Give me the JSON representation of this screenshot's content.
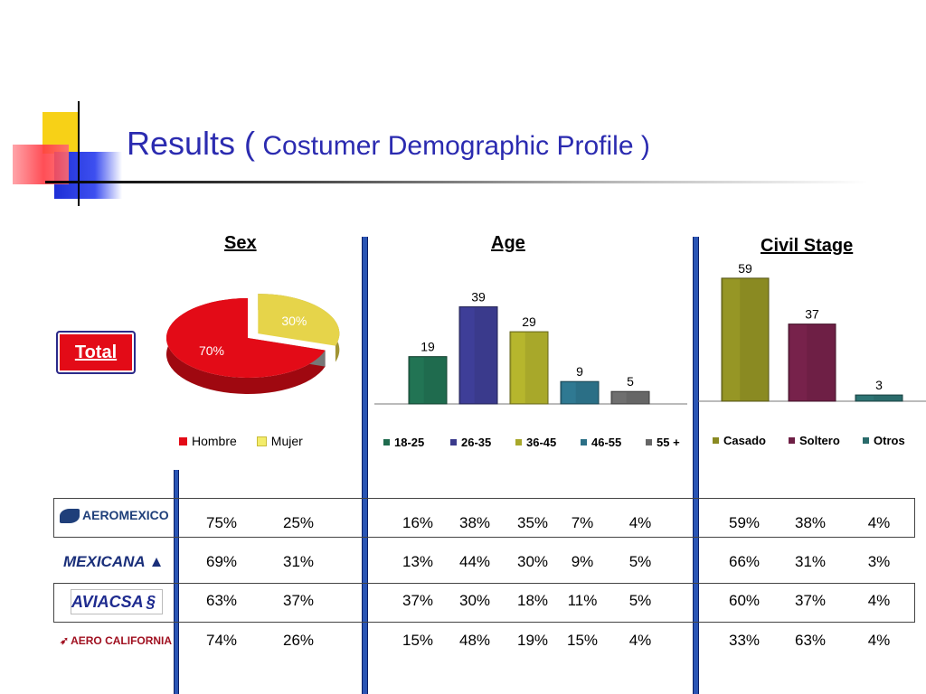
{
  "title": {
    "main": "Results (",
    "sub": " Costumer Demographic Profile )"
  },
  "total_button": "Total",
  "colors": {
    "hombre": "#e30b17",
    "mujer": "#e6d44a",
    "age_18_25": "#1f6b4e",
    "age_26_35": "#3a3a8c",
    "age_36_45": "#a8a82a",
    "age_46_55": "#2b6f86",
    "age_55_plus": "#666666",
    "casado": "#8a8a22",
    "soltero": "#6e1f45",
    "otros": "#2a6b6b",
    "title": "#2b2bb0"
  },
  "chart_data": [
    {
      "type": "pie",
      "title": "Sex",
      "labels": [
        "Hombre",
        "Mujer"
      ],
      "values": [
        70,
        30
      ],
      "value_labels": [
        "70%",
        "30%"
      ]
    },
    {
      "type": "bar",
      "title": "Age",
      "categories": [
        "18-25",
        "26-35",
        "36-45",
        "46-55",
        "55 +"
      ],
      "values": [
        19,
        39,
        29,
        9,
        5
      ],
      "ylim": [
        0,
        45
      ]
    },
    {
      "type": "bar",
      "title": "Civil Stage",
      "categories": [
        "Casado",
        "Soltero",
        "Otros"
      ],
      "values": [
        59,
        37,
        3
      ],
      "ylim": [
        0,
        65
      ]
    },
    {
      "type": "table",
      "columns": [
        "Hombre",
        "Mujer",
        "18-25",
        "26-35",
        "36-45",
        "46-55",
        "55 +",
        "Casado",
        "Soltero",
        "Otros"
      ],
      "rows": [
        {
          "brand": "AeroMexico",
          "logo": "AEROMEXICO",
          "values": [
            "75%",
            "25%",
            "16%",
            "38%",
            "35%",
            "7%",
            "4%",
            "59%",
            "38%",
            "4%"
          ]
        },
        {
          "brand": "Mexicana",
          "logo": "MEXICANA",
          "values": [
            "69%",
            "31%",
            "13%",
            "44%",
            "30%",
            "9%",
            "5%",
            "66%",
            "31%",
            "3%"
          ]
        },
        {
          "brand": "Aviacsa",
          "logo": "AVIACSA",
          "values": [
            "63%",
            "37%",
            "37%",
            "30%",
            "18%",
            "11%",
            "5%",
            "60%",
            "37%",
            "4%"
          ]
        },
        {
          "brand": "Aero California",
          "logo": "AERO CALIFORNIA",
          "values": [
            "74%",
            "26%",
            "15%",
            "48%",
            "19%",
            "15%",
            "4%",
            "33%",
            "63%",
            "4%"
          ]
        }
      ]
    }
  ]
}
